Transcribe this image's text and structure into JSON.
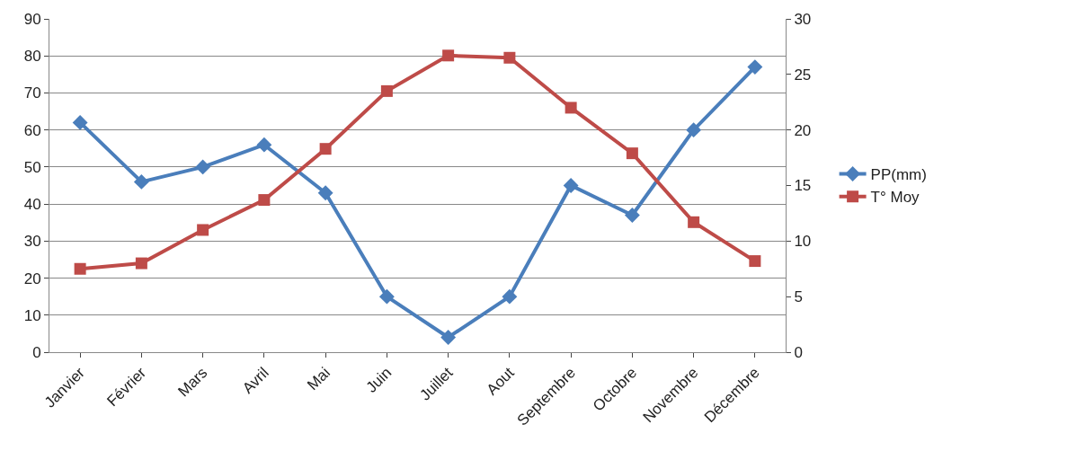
{
  "chart_data": {
    "type": "line",
    "categories": [
      "Janvier",
      "Février",
      "Mars",
      "Avril",
      "Mai",
      "Juin",
      "Juillet",
      "Aout",
      "Septembre",
      "Octobre",
      "Novembre",
      "Décembre"
    ],
    "series": [
      {
        "name": "PP(mm)",
        "color": "#4a7ebb",
        "marker": "diamond",
        "values": [
          62,
          46,
          50,
          56,
          43,
          15,
          4,
          15,
          45,
          37,
          60,
          77
        ]
      },
      {
        "name": "T° Moy",
        "color": "#be4b48",
        "marker": "square",
        "axis": "y2",
        "values": [
          7.5,
          8,
          11,
          13.7,
          18.3,
          23.5,
          26.7,
          26.5,
          22,
          17.9,
          11.7,
          8.2
        ]
      }
    ],
    "ylim": [
      0,
      90
    ],
    "yticks": [
      0,
      10,
      20,
      30,
      40,
      50,
      60,
      70,
      80,
      90
    ],
    "y2lim": [
      0,
      30
    ],
    "y2ticks": [
      0,
      5,
      10,
      15,
      20,
      25,
      30
    ],
    "grid": "y",
    "legend": "right",
    "line_style": "solid"
  }
}
